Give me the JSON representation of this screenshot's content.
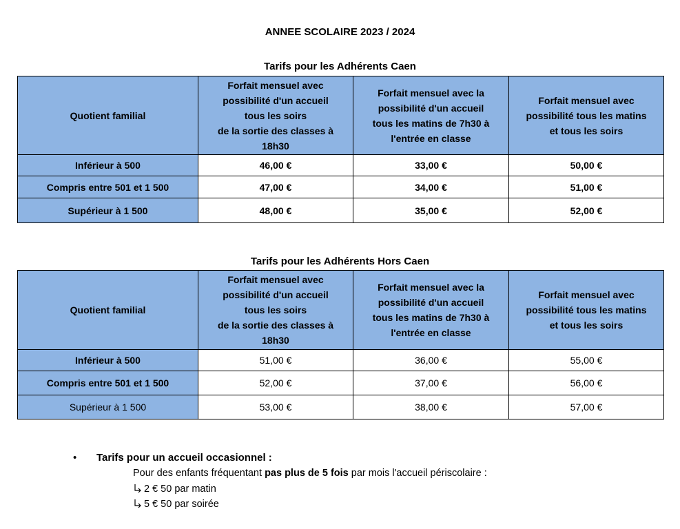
{
  "title": "ANNEE SCOLAIRE  2023 / 2024",
  "tables": [
    {
      "caption": "Tarifs pour les Adhérents Caen",
      "header": [
        [
          "Quotient familial"
        ],
        [
          "Forfait mensuel avec",
          "possibilité d'un accueil",
          "tous les soirs",
          "de la sortie des classes à",
          "18h30"
        ],
        [
          "Forfait mensuel avec la",
          "possibilité d'un accueil",
          "tous les matins de 7h30 à",
          "l'entrée en classe"
        ],
        [
          "Forfait mensuel avec",
          "possibilité tous les matins",
          "et tous les soirs"
        ]
      ],
      "rows": [
        [
          "Inférieur à 500",
          "46,00 €",
          "33,00 €",
          "50,00 €"
        ],
        [
          "Compris entre 501 et 1 500",
          "47,00 €",
          "34,00 €",
          "51,00 €"
        ],
        [
          "Supérieur à 1 500",
          "48,00 €",
          "35,00 €",
          "52,00 €"
        ]
      ]
    },
    {
      "caption": "Tarifs pour les Adhérents Hors Caen",
      "header": [
        [
          "Quotient familial"
        ],
        [
          "Forfait mensuel avec",
          "possibilité d'un accueil",
          "tous les soirs",
          "de la sortie des classes à",
          "18h30"
        ],
        [
          "Forfait mensuel avec la",
          "possibilité d'un accueil",
          "tous les matins de 7h30 à",
          "l'entrée en classe"
        ],
        [
          "Forfait mensuel avec",
          "possibilité tous les matins",
          "et tous les soirs"
        ]
      ],
      "rows": [
        [
          "Inférieur à 500",
          "51,00 €",
          "36,00 €",
          "55,00 €"
        ],
        [
          "Compris entre 501 et 1 500",
          "52,00 €",
          "37,00 €",
          "56,00 €"
        ],
        [
          "Supérieur à 1 500",
          "53,00 €",
          "38,00 €",
          "57,00 €"
        ]
      ]
    }
  ],
  "occasional": {
    "heading": "Tarifs pour un accueil occasionnel :",
    "intro": [
      "Pour des enfants fréquentant ",
      "pas plus de 5 fois",
      " par mois l'accueil périscolaire :"
    ],
    "items": [
      "2 € 50 par matin",
      "5 € 50 par soirée"
    ]
  }
}
